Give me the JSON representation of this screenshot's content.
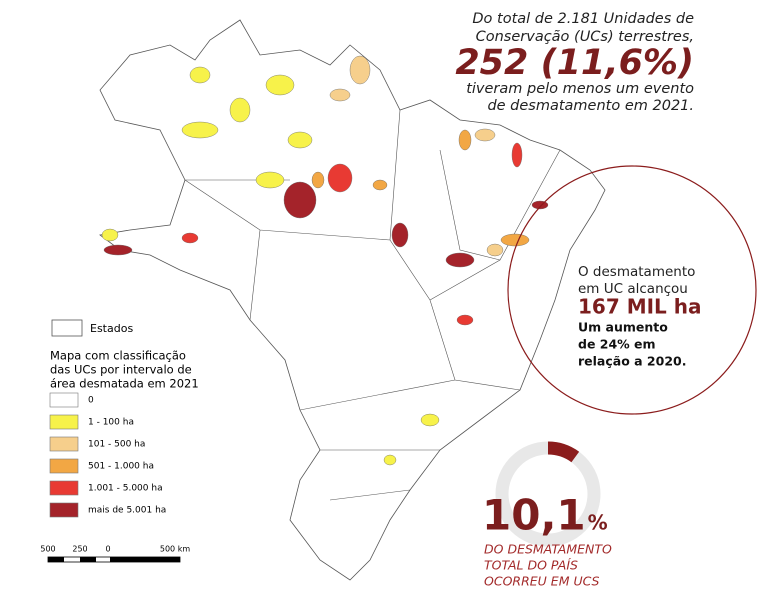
{
  "headline": {
    "intro_lines": [
      "Do total de 2.181 Unidades de",
      "Conservação (UCs) terrestres,"
    ],
    "highlight": "252 (11,6%)",
    "outro_lines": [
      "tiveram pelo menos um evento",
      "de desmatamento em 2021."
    ]
  },
  "callout": {
    "intro_lines": [
      "O desmatamento",
      "em UC alcançou"
    ],
    "highlight": "167 MIL ha",
    "outro_lines": [
      "Um aumento",
      "de 24% em",
      "relação a 2020."
    ]
  },
  "donut": {
    "value": 10.1,
    "label": "10,1",
    "unit": "%",
    "caption_lines": [
      "DO DESMATAMENTO",
      "TOTAL DO PAÍS",
      "OCORREU EM UCS"
    ],
    "color": "#8b1c1c",
    "track_color": "#e8e8e8"
  },
  "legend": {
    "states_label": "Estados",
    "title_lines": [
      "Mapa com classificação",
      "das UCs por intervalo de",
      "área desmatada em 2021"
    ],
    "items": [
      {
        "label": "0",
        "color": "#ffffff"
      },
      {
        "label": "1 - 100 ha",
        "color": "#f7f24a"
      },
      {
        "label": "101 - 500 ha",
        "color": "#f6cf8c"
      },
      {
        "label": "501 - 1.000 ha",
        "color": "#f2a744"
      },
      {
        "label": "1.001 - 5.000 ha",
        "color": "#e83a33"
      },
      {
        "label": "mais de 5.001 ha",
        "color": "#a4232a"
      }
    ]
  },
  "scale_bar": {
    "labels": [
      "500",
      "250",
      "0",
      "500 km"
    ]
  }
}
